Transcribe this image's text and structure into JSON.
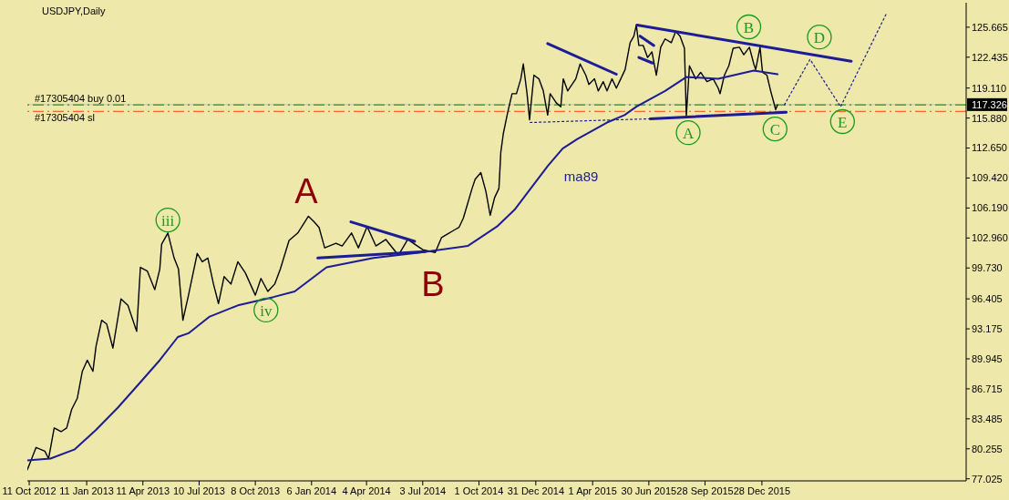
{
  "chart_data": {
    "type": "line",
    "title": "USDJPY,Daily",
    "xlim": [
      "2012-10-08",
      "2016-11-19"
    ],
    "ylim": [
      76.8,
      128.3
    ],
    "xticks": [
      {
        "value": "2012-10-11",
        "label": "11 Oct 2012"
      },
      {
        "value": "2013-01-11",
        "label": "11 Jan 2013"
      },
      {
        "value": "2013-04-11",
        "label": "11 Apr 2013"
      },
      {
        "value": "2013-07-10",
        "label": "10 Jul 2013"
      },
      {
        "value": "2013-10-08",
        "label": "8 Oct 2013"
      },
      {
        "value": "2014-01-06",
        "label": "6 Jan 2014"
      },
      {
        "value": "2014-04-04",
        "label": "4 Apr 2014"
      },
      {
        "value": "2014-07-03",
        "label": "3 Jul 2014"
      },
      {
        "value": "2014-10-01",
        "label": "1 Oct 2014"
      },
      {
        "value": "2014-12-31",
        "label": "31 Dec 2014"
      },
      {
        "value": "2015-04-01",
        "label": "1 Apr 2015"
      },
      {
        "value": "2015-06-30",
        "label": "30 Jun 2015"
      },
      {
        "value": "2015-09-28",
        "label": "28 Sep 2015"
      },
      {
        "value": "2015-12-28",
        "label": "28 Dec 2015"
      }
    ],
    "yticks": [
      125.665,
      122.435,
      {
        "value": 119.11,
        "label": "119.110"
      },
      {
        "value": 115.88,
        "label": "115.880"
      },
      {
        "value": 112.65,
        "label": "112.650"
      },
      {
        "value": 109.42,
        "label": "109.420"
      },
      {
        "value": 106.19,
        "label": "106.190"
      },
      {
        "value": 102.96,
        "label": "102.960"
      },
      {
        "value": 99.73,
        "label": "99.730"
      },
      96.405,
      93.175,
      89.945,
      86.715,
      83.485,
      80.255,
      77.025
    ],
    "series": [
      {
        "color": "#000000",
        "x": [
          "2012-10-08",
          "2012-10-22",
          "2012-11-05",
          "2012-11-11",
          "2012-11-20",
          "2012-12-01",
          "2012-12-10",
          "2012-12-18",
          "2012-12-27",
          "2013-01-04",
          "2013-01-12",
          "2013-01-21",
          "2013-01-26",
          "2013-02-04",
          "2013-02-12",
          "2013-02-22",
          "2013-03-07",
          "2013-03-18",
          "2013-04-01",
          "2013-04-07",
          "2013-04-18",
          "2013-04-30",
          "2013-05-08",
          "2013-05-11",
          "2013-05-21",
          "2013-05-31",
          "2013-06-07",
          "2013-06-14",
          "2013-06-23",
          "2013-07-07",
          "2013-07-15",
          "2013-07-24",
          "2013-08-02",
          "2013-08-10",
          "2013-08-19",
          "2013-08-30",
          "2013-09-10",
          "2013-09-22",
          "2013-10-08",
          "2013-10-17",
          "2013-10-28",
          "2013-11-08",
          "2013-11-17",
          "2013-12-01",
          "2013-12-15",
          "2014-01-01",
          "2014-01-10",
          "2014-01-18",
          "2014-01-27",
          "2014-02-14",
          "2014-02-24",
          "2014-03-11",
          "2014-03-22",
          "2014-04-05",
          "2014-04-19",
          "2014-05-05",
          "2014-05-25",
          "2014-06-09",
          "2014-07-03",
          "2014-07-23",
          "2014-08-02",
          "2014-08-22",
          "2014-08-30",
          "2014-09-06",
          "2014-09-13",
          "2014-09-20",
          "2014-09-25",
          "2014-10-04",
          "2014-10-12",
          "2014-10-19",
          "2014-10-26",
          "2014-11-02",
          "2014-11-05",
          "2014-11-09",
          "2014-11-16",
          "2014-11-23",
          "2014-11-30",
          "2014-12-07",
          "2014-12-11",
          "2014-12-17",
          "2014-12-21",
          "2014-12-28",
          "2015-01-05",
          "2015-01-12",
          "2015-01-19",
          "2015-01-23",
          "2015-02-02",
          "2015-02-09",
          "2015-02-13",
          "2015-02-20",
          "2015-03-05",
          "2015-03-12",
          "2015-03-21",
          "2015-03-26",
          "2015-04-04",
          "2015-04-10",
          "2015-04-18",
          "2015-04-24",
          "2015-05-02",
          "2015-05-09",
          "2015-05-16",
          "2015-05-23",
          "2015-05-31",
          "2015-06-06",
          "2015-06-10",
          "2015-06-14",
          "2015-06-21",
          "2015-06-28",
          "2015-07-05",
          "2015-07-12",
          "2015-07-19",
          "2015-07-26",
          "2015-08-05",
          "2015-08-12",
          "2015-08-19",
          "2015-08-26",
          "2015-08-29",
          "2015-09-03",
          "2015-09-13",
          "2015-09-21",
          "2015-10-01",
          "2015-10-11",
          "2015-10-19",
          "2015-10-22",
          "2015-10-29",
          "2015-11-05",
          "2015-11-12",
          "2015-11-22",
          "2015-11-29",
          "2015-12-08",
          "2015-12-15",
          "2015-12-18",
          "2015-12-25",
          "2015-12-29",
          "2016-01-05",
          "2016-01-11",
          "2016-01-15",
          "2016-01-19",
          "2016-01-22"
        ],
        "values": [
          78.0,
          80.4,
          80.0,
          79.2,
          82.5,
          82.1,
          82.5,
          84.5,
          85.7,
          88.6,
          89.8,
          88.6,
          91.3,
          94.1,
          93.7,
          91.1,
          96.4,
          95.7,
          92.9,
          99.8,
          99.4,
          97.4,
          99.6,
          102.3,
          103.5,
          100.8,
          99.6,
          94.1,
          96.8,
          101.3,
          100.4,
          100.8,
          98.0,
          95.9,
          98.8,
          98.0,
          100.4,
          99.2,
          96.8,
          98.6,
          97.2,
          98.0,
          99.6,
          102.7,
          103.5,
          105.3,
          104.7,
          104.1,
          101.9,
          102.4,
          102.1,
          103.5,
          101.9,
          104.2,
          102.1,
          102.8,
          101.1,
          102.8,
          101.7,
          101.4,
          103.0,
          103.8,
          104.1,
          105.1,
          106.7,
          108.3,
          109.3,
          110.0,
          108.0,
          105.4,
          107.3,
          108.3,
          112.2,
          114.2,
          116.5,
          118.5,
          118.5,
          120.1,
          121.7,
          118.5,
          115.7,
          120.5,
          120.1,
          118.8,
          116.2,
          118.5,
          117.5,
          117.1,
          120.1,
          118.8,
          120.1,
          121.7,
          120.5,
          119.5,
          120.1,
          118.8,
          119.8,
          118.8,
          120.1,
          119.1,
          120.1,
          121.1,
          124.0,
          124.7,
          125.9,
          123.7,
          123.7,
          122.4,
          123.0,
          120.5,
          123.5,
          124.4,
          124.0,
          125.2,
          124.7,
          123.4,
          116.1,
          121.5,
          120.1,
          120.8,
          119.8,
          120.1,
          119.1,
          118.5,
          120.5,
          121.5,
          123.4,
          123.5,
          122.7,
          123.5,
          121.7,
          121.1,
          123.5,
          120.8,
          120.5,
          118.8,
          117.8,
          116.8,
          117.3
        ]
      },
      {
        "name": "ma89",
        "color": "#1c1c96",
        "x": [
          "2012-10-08",
          "2012-11-14",
          "2012-12-23",
          "2013-01-26",
          "2013-03-02",
          "2013-04-04",
          "2013-05-08",
          "2013-06-06",
          "2013-06-23",
          "2013-07-27",
          "2013-09-10",
          "2013-11-06",
          "2013-12-10",
          "2014-01-30",
          "2014-04-15",
          "2014-06-29",
          "2014-09-13",
          "2014-10-30",
          "2014-11-27",
          "2015-01-19",
          "2015-02-12",
          "2015-03-07",
          "2015-04-24",
          "2015-05-22",
          "2015-06-10",
          "2015-07-26",
          "2015-08-29",
          "2015-10-19",
          "2015-12-15",
          "2016-01-22"
        ],
        "values": [
          79.0,
          79.2,
          80.2,
          82.3,
          84.7,
          87.2,
          89.8,
          92.3,
          92.7,
          94.5,
          95.7,
          96.6,
          97.2,
          99.8,
          100.8,
          101.4,
          102.1,
          104.2,
          106.0,
          110.7,
          112.6,
          113.6,
          115.4,
          116.2,
          117.1,
          118.8,
          120.3,
          120.1,
          121.0,
          120.6
        ]
      },
      {
        "color": "#1c1c96",
        "x": [
          "2014-03-10",
          "2014-06-20"
        ],
        "values": [
          104.7,
          102.6
        ]
      },
      {
        "color": "#1c1c96",
        "x": [
          "2014-01-16",
          "2014-07-07"
        ],
        "values": [
          100.8,
          101.5
        ]
      },
      {
        "color": "#1c1c96",
        "x": [
          "2015-01-19",
          "2015-05-09"
        ],
        "values": [
          123.9,
          120.6
        ]
      },
      {
        "color": "#1c1c96",
        "x": [
          "2015-06-11",
          "2016-05-19"
        ],
        "values": [
          125.9,
          122.0
        ]
      },
      {
        "color": "#1c1c96",
        "x": [
          "2015-06-16",
          "2015-07-08"
        ],
        "values": [
          124.7,
          123.7
        ]
      },
      {
        "color": "#1c1c96",
        "x": [
          "2015-06-14",
          "2015-07-06"
        ],
        "values": [
          122.4,
          121.8
        ]
      },
      {
        "color": "#1c1c96",
        "x": [
          "2015-07-02",
          "2016-02-05"
        ],
        "values": [
          115.8,
          116.5
        ]
      },
      {
        "color": "#1c1c96",
        "line_style": "dotted",
        "x": [
          "2014-12-22",
          "2015-07-02"
        ],
        "values": [
          115.4,
          115.8
        ]
      },
      {
        "color": "#1c1c96",
        "line_style": "dotted",
        "x": [
          "2016-02-02",
          "2016-03-14",
          "2016-05-02",
          "2016-07-14"
        ],
        "values": [
          117.3,
          122.2,
          117.1,
          127.1
        ]
      }
    ],
    "ref_lines": [
      {
        "axis": "y",
        "value": 117.326,
        "label": "117.326",
        "color": "#c0c0c0",
        "line_style": "solid"
      },
      {
        "axis": "y",
        "value": 117.3,
        "label": "#17305404 buy 0.01",
        "color": "#008000",
        "line_style": "dashed"
      },
      {
        "axis": "y",
        "value": 116.6,
        "label": "#17305404 sl",
        "color": "#ff4500",
        "line_style": "dashed"
      }
    ],
    "annotations": [
      "A",
      "B",
      {
        "text": "iii",
        "x": "2013-05-21",
        "y": 104.9
      },
      {
        "text": "iv",
        "x": "2013-10-25",
        "y": 95.2
      },
      {
        "text": "A",
        "x": "2015-09-01",
        "y": 114.3
      },
      {
        "text": "B",
        "x": "2015-12-07",
        "y": 125.7
      },
      {
        "text": "C",
        "x": "2016-01-18",
        "y": 114.7
      },
      {
        "text": "D",
        "x": "2016-03-29",
        "y": 124.6
      },
      {
        "text": "E",
        "x": "2016-05-05",
        "y": 115.5
      }
    ]
  }
}
